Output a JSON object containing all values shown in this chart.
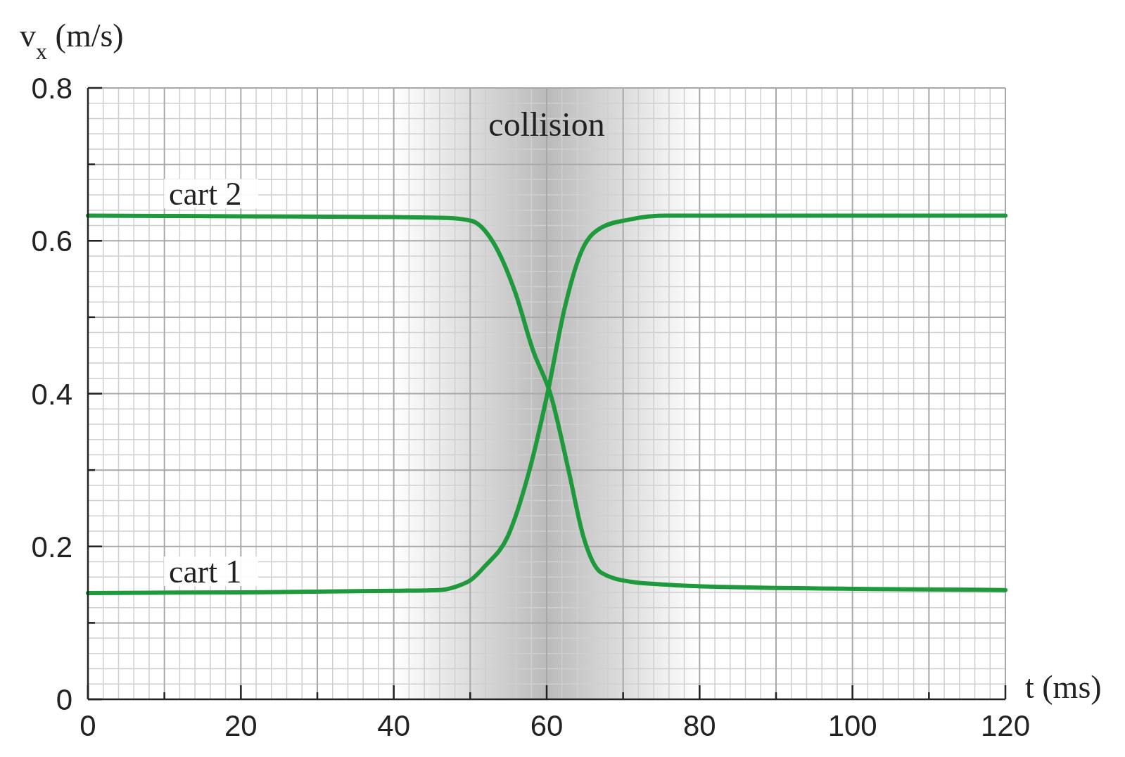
{
  "chart_data": {
    "type": "line",
    "xlabel": "t (ms)",
    "ylabel": "v$_{x}$ (m/s)",
    "xlim": [
      0,
      120
    ],
    "ylim": [
      0,
      0.8
    ],
    "xticks": [
      0,
      {
        "value": 10,
        "label": null
      },
      20,
      {
        "value": 30,
        "label": null
      },
      40,
      {
        "value": 50,
        "label": null
      },
      60,
      {
        "value": 70,
        "label": null
      },
      80,
      {
        "value": 90,
        "label": null
      },
      100,
      {
        "value": 110,
        "label": null
      },
      120
    ],
    "yticks": [
      0,
      {
        "value": 0.1,
        "label": null
      },
      0.2,
      {
        "value": 0.3,
        "label": null
      },
      0.4,
      {
        "value": 0.5,
        "label": null
      },
      0.6,
      {
        "value": 0.7,
        "label": null
      },
      0.8
    ],
    "grid": true,
    "legend": false,
    "line_style": "solid",
    "marker": "none",
    "bands": [
      {
        "axis": "x",
        "from": 40,
        "to": 80,
        "label": "collision",
        "color": "#8c8c8c"
      }
    ],
    "series": [
      {
        "name": "cart 1",
        "color": "#1e9a3c",
        "x": [
          0,
          20,
          40,
          46,
          48,
          50.2,
          52,
          54.9,
          57.7,
          60.1,
          62.4,
          64.3,
          67.1,
          70.9,
          75.6,
          90,
          120
        ],
        "values": [
          0.139,
          0.14,
          0.142,
          0.143,
          0.147,
          0.157,
          0.175,
          0.213,
          0.298,
          0.4,
          0.514,
          0.58,
          0.617,
          0.628,
          0.633,
          0.633,
          0.633
        ]
      },
      {
        "name": "cart 2",
        "color": "#1e9a3c",
        "x": [
          0,
          20,
          40,
          47,
          50.2,
          53,
          55.9,
          58.2,
          60.6,
          62.9,
          64.8,
          67.1,
          70.9,
          75.6,
          83,
          120
        ],
        "values": [
          0.633,
          0.632,
          0.631,
          0.63,
          0.626,
          0.598,
          0.532,
          0.457,
          0.396,
          0.298,
          0.213,
          0.166,
          0.154,
          0.15,
          0.147,
          0.143
        ]
      }
    ]
  }
}
